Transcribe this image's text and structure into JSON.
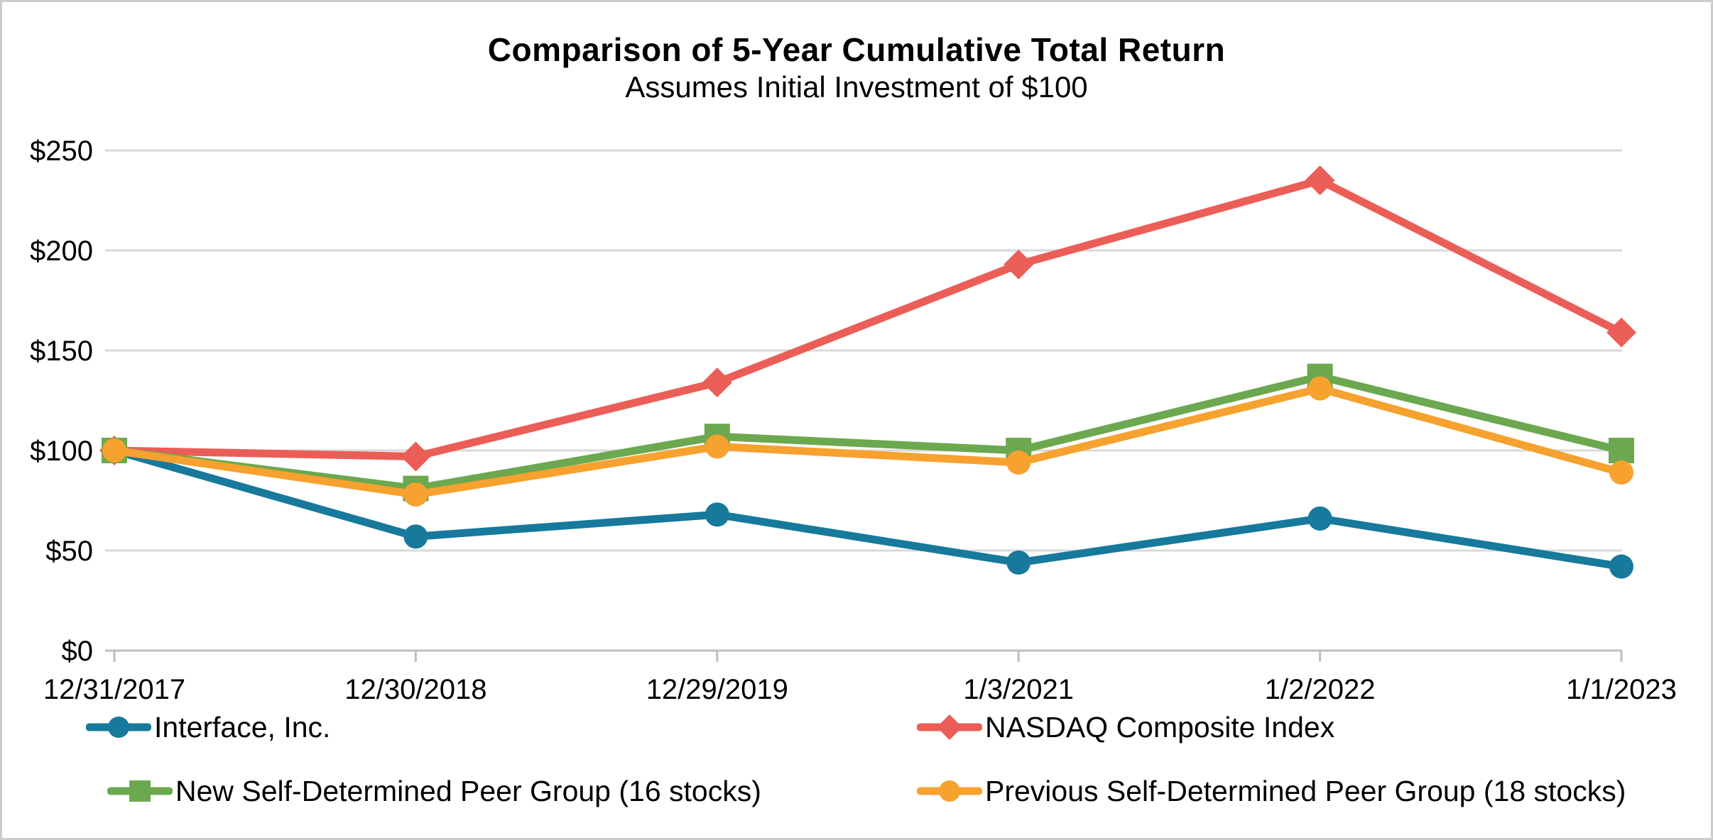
{
  "chart_data": {
    "type": "line",
    "title": "Comparison of 5-Year Cumulative Total Return",
    "subtitle": "Assumes Initial Investment of $100",
    "categories": [
      "12/31/2017",
      "12/30/2018",
      "12/29/2019",
      "1/3/2021",
      "1/2/2022",
      "1/1/2023"
    ],
    "y_ticks": [
      {
        "value": 0,
        "label": "$0"
      },
      {
        "value": 50,
        "label": "$50"
      },
      {
        "value": 100,
        "label": "$100"
      },
      {
        "value": 150,
        "label": "$150"
      },
      {
        "value": 200,
        "label": "$200"
      },
      {
        "value": 250,
        "label": "$250"
      }
    ],
    "ylim": [
      0,
      250
    ],
    "grid": "horizontal",
    "legend_position": "bottom-two-columns",
    "colors": {
      "gridline": "#D9D9D9",
      "axis": "#BFBFBF",
      "text": "#000000"
    },
    "series": [
      {
        "name": "Interface, Inc.",
        "marker": "circle",
        "color": "#17799B",
        "values": [
          100,
          57,
          68,
          44,
          66,
          42
        ]
      },
      {
        "name": "NASDAQ Composite Index",
        "marker": "diamond",
        "color": "#EB5E57",
        "values": [
          100,
          97,
          134,
          193,
          235,
          159
        ]
      },
      {
        "name": "New Self-Determined Peer Group (16 stocks)",
        "marker": "square",
        "color": "#6CA84F",
        "values": [
          100,
          81,
          107,
          100,
          137,
          100
        ]
      },
      {
        "name": "Previous Self-Determined Peer Group (18 stocks)",
        "marker": "circle",
        "color": "#F7A12F",
        "values": [
          100,
          78,
          102,
          94,
          131,
          89
        ]
      }
    ]
  }
}
